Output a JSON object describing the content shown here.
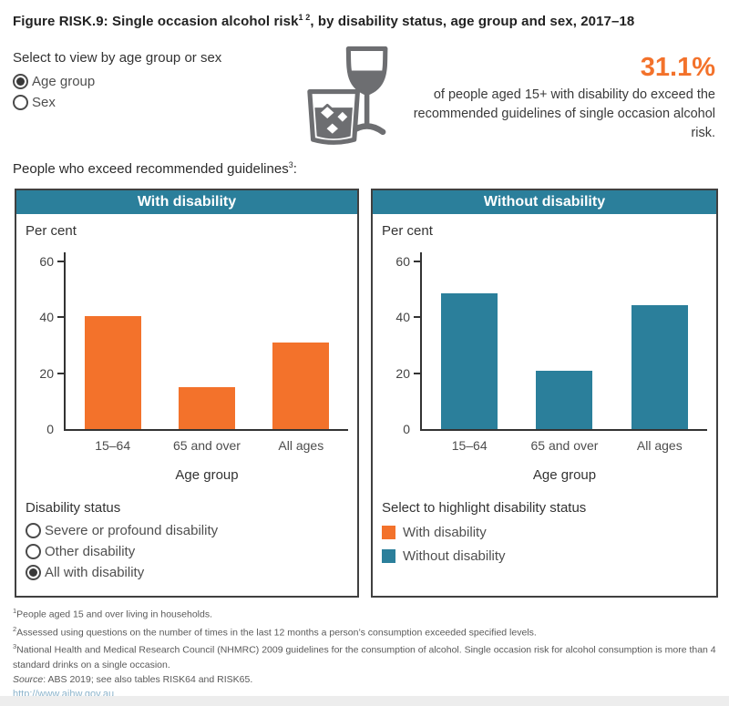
{
  "header": {
    "title_prefix": "Figure RISK.9: Single occasion alcohol risk",
    "title_sup": "1 2",
    "title_suffix": ", by disability status, age group and sex, 2017–18"
  },
  "view_selector": {
    "label": "Select to view by age group or sex",
    "options": [
      {
        "label": "Age group",
        "selected": true
      },
      {
        "label": "Sex",
        "selected": false
      }
    ]
  },
  "icon": {
    "name": "wine-glass-and-tumbler-icon",
    "color": "#6d6e71"
  },
  "stat": {
    "value": "31.1%",
    "description": "of people aged 15+ with disability do exceed the recommended guidelines of single occasion alcohol risk."
  },
  "subtitle": {
    "text_prefix": "People who exceed recommended guidelines",
    "sup": "3",
    "text_suffix": ":"
  },
  "chart_data": [
    {
      "type": "bar",
      "title": "With disability",
      "categories": [
        "15–64",
        "65 and over",
        "All ages"
      ],
      "values": [
        40.3,
        15,
        31.1
      ],
      "xlabel": "Age group",
      "ylabel": "Per cent",
      "ylim": [
        0,
        60
      ],
      "yticks": [
        0,
        20,
        40,
        60
      ],
      "bar_color": "#f3722b",
      "grid": false,
      "legend": "none"
    },
    {
      "type": "bar",
      "title": "Without disability",
      "categories": [
        "15–64",
        "65 and over",
        "All ages"
      ],
      "values": [
        48.5,
        21,
        44.5
      ],
      "xlabel": "Age group",
      "ylabel": "Per cent",
      "ylim": [
        0,
        60
      ],
      "yticks": [
        0,
        20,
        40,
        60
      ],
      "bar_color": "#2b7f9b",
      "grid": false,
      "legend": "none"
    }
  ],
  "disability_selector": {
    "label": "Disability status",
    "options": [
      {
        "label": "Severe or profound disability",
        "selected": false
      },
      {
        "label": "Other disability",
        "selected": false
      },
      {
        "label": "All with disability",
        "selected": true
      }
    ]
  },
  "highlight_legend": {
    "label": "Select to highlight disability status",
    "items": [
      {
        "label": "With disability",
        "color": "#f3722b"
      },
      {
        "label": "Without disability",
        "color": "#2b7f9b"
      }
    ]
  },
  "footnotes": [
    {
      "sup": "1",
      "text": "People aged 15 and over living in households."
    },
    {
      "sup": "2",
      "text": "Assessed using questions on the number of times in the last 12 months a person’s consumption exceeded specified levels."
    },
    {
      "sup": "3",
      "text": "National Health and Medical Research Council (NHMRC) 2009 guidelines for the consumption of alcohol. Single occasion risk for alcohol consumption is more than 4 standard drinks on a single occasion."
    }
  ],
  "source": {
    "label": "Source",
    "text": ": ABS 2019; see also tables RISK64 and RISK65."
  },
  "link": "http://www.aihw.gov.au",
  "colors": {
    "accent_orange": "#f3722b",
    "accent_teal": "#2b7f9b",
    "panel_border": "#404040",
    "link_blue": "#8cb4cc"
  }
}
